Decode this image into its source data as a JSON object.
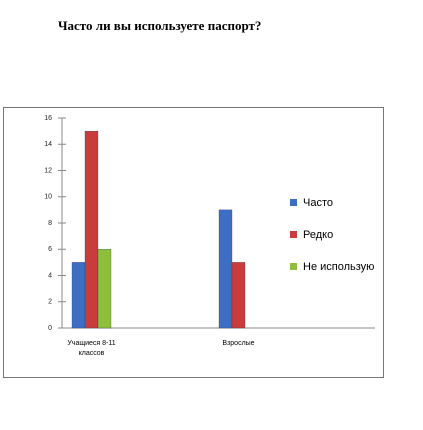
{
  "chart_data": {
    "type": "bar",
    "title": "Часто ли вы используете паспорт?",
    "categories": [
      "Учащиеся 8-11 классов",
      "Взрослые"
    ],
    "series": [
      {
        "name": "Часто",
        "color": "#3c6fc4",
        "values": [
          5,
          9
        ]
      },
      {
        "name": "Редко",
        "color": "#c83c3c",
        "values": [
          15,
          5
        ]
      },
      {
        "name": "Не использую",
        "color": "#8fbf3a",
        "values": [
          6,
          null
        ]
      }
    ],
    "ylim": [
      0,
      16
    ],
    "yticks": [
      0,
      2,
      4,
      6,
      8,
      10,
      12,
      14,
      16
    ],
    "legend": "right"
  }
}
